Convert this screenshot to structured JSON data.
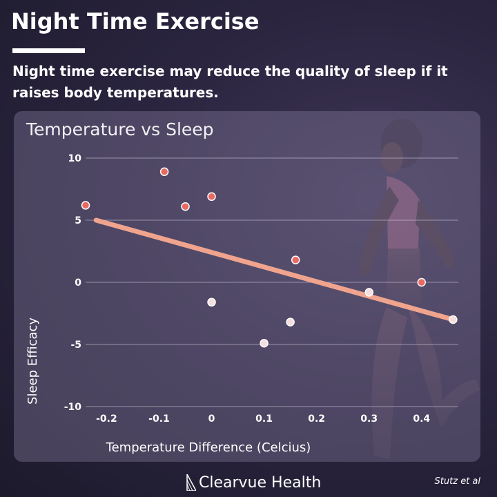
{
  "header": {
    "title": "Night Time Exercise",
    "subtitle": "Night time exercise may reduce the quality of sleep if it raises body temperatures."
  },
  "footer": {
    "brand": "Clearvue Health",
    "credit": "Stutz et al"
  },
  "colors": {
    "point_fill_warm": "#e86a62",
    "point_fill_light": "#f4dede",
    "trend_line": "#f0a48e",
    "grid": "#d9d4e3"
  },
  "chart_data": {
    "type": "scatter",
    "title": "Temperature vs Sleep",
    "xlabel": "Temperature Difference (Celcius)",
    "ylabel": "Sleep Efficacy",
    "xlim": [
      -0.24,
      0.47
    ],
    "ylim": [
      -10,
      10
    ],
    "x_ticks": [
      -0.2,
      -0.1,
      0,
      0.1,
      0.2,
      0.3,
      0.4
    ],
    "x_tick_labels": [
      "-0.2",
      "-0.1",
      "0",
      "0.1",
      "0.2",
      "0.3",
      "0.4"
    ],
    "y_ticks": [
      10,
      5,
      0,
      -5,
      -10
    ],
    "y_tick_labels": [
      "10",
      "5",
      "0",
      "-5",
      "-10"
    ],
    "grid": "horizontal",
    "points": [
      {
        "x": -0.24,
        "y": 6.2
      },
      {
        "x": -0.09,
        "y": 8.9
      },
      {
        "x": -0.05,
        "y": 6.1
      },
      {
        "x": 0.0,
        "y": 6.9
      },
      {
        "x": 0.0,
        "y": -1.6
      },
      {
        "x": 0.1,
        "y": -4.9
      },
      {
        "x": 0.15,
        "y": -3.2
      },
      {
        "x": 0.16,
        "y": 1.8
      },
      {
        "x": 0.3,
        "y": -0.8
      },
      {
        "x": 0.4,
        "y": 0.0
      },
      {
        "x": 0.46,
        "y": -3.0
      }
    ],
    "trend_line": {
      "x": [
        -0.22,
        0.46
      ],
      "y": [
        5.0,
        -3.0
      ]
    }
  }
}
